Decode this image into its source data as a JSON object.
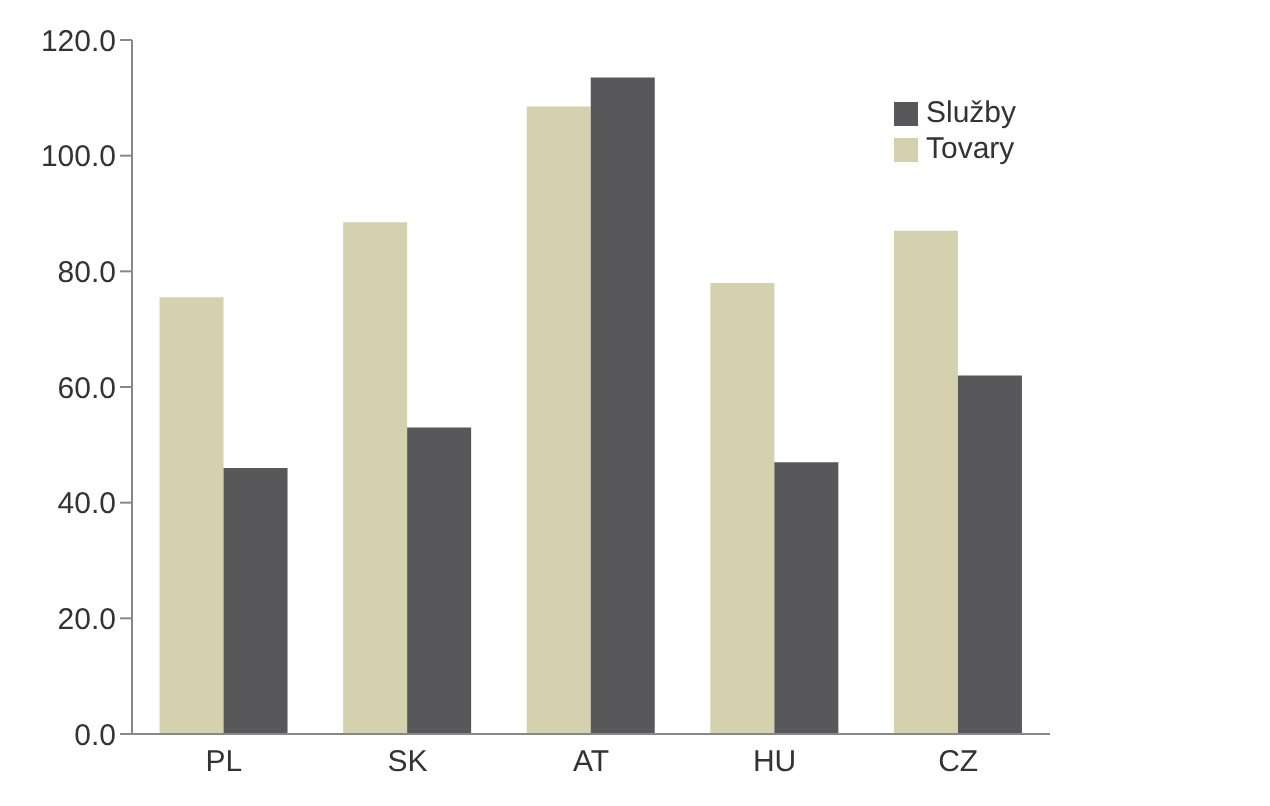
{
  "chart_data": {
    "type": "bar",
    "categories": [
      "PL",
      "SK",
      "AT",
      "HU",
      "CZ"
    ],
    "series": [
      {
        "name": "Tovary",
        "color": "#d5d1ae",
        "values": [
          75.5,
          88.5,
          108.5,
          78.0,
          87.0
        ]
      },
      {
        "name": "Služby",
        "color": "#58585a",
        "values": [
          46.0,
          53.0,
          113.5,
          47.0,
          62.0
        ]
      }
    ],
    "ylim": [
      0,
      120
    ],
    "yticks": [
      {
        "value": 0,
        "label": "0.0"
      },
      {
        "value": 20,
        "label": "20.0"
      },
      {
        "value": 40,
        "label": "40.0"
      },
      {
        "value": 60,
        "label": "60.0"
      },
      {
        "value": 80,
        "label": "80.0"
      },
      {
        "value": 100,
        "label": "100.0"
      },
      {
        "value": 120,
        "label": "120.0"
      }
    ],
    "grid": false,
    "legend": "top right"
  }
}
